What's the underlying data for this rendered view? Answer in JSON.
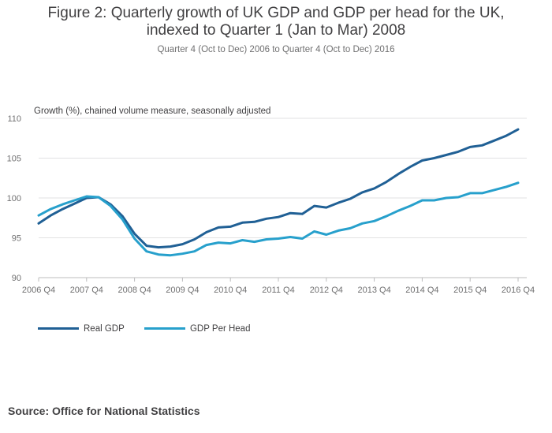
{
  "title_line1": "Figure 2: Quarterly growth of UK GDP and GDP per head for the UK,",
  "title_line2": "indexed to Quarter 1 (Jan to Mar) 2008",
  "subtitle": "Quarter 4 (Oct to Dec) 2006 to Quarter 4 (Oct to Dec) 2016",
  "source": "Source: Office for National Statistics",
  "chart_data": {
    "type": "line",
    "ylabel": "Growth (%), chained volume measure, seasonally adjusted",
    "xlabel": "",
    "ylim": [
      90,
      110
    ],
    "yticks": [
      90,
      95,
      100,
      105,
      110
    ],
    "grid": true,
    "legend_position": "bottom-left",
    "x": [
      "2006 Q4",
      "2007 Q1",
      "2007 Q2",
      "2007 Q3",
      "2007 Q4",
      "2008 Q1",
      "2008 Q2",
      "2008 Q3",
      "2008 Q4",
      "2009 Q1",
      "2009 Q2",
      "2009 Q3",
      "2009 Q4",
      "2010 Q1",
      "2010 Q2",
      "2010 Q3",
      "2010 Q4",
      "2011 Q1",
      "2011 Q2",
      "2011 Q3",
      "2011 Q4",
      "2012 Q1",
      "2012 Q2",
      "2012 Q3",
      "2012 Q4",
      "2013 Q1",
      "2013 Q2",
      "2013 Q3",
      "2013 Q4",
      "2014 Q1",
      "2014 Q2",
      "2014 Q3",
      "2014 Q4",
      "2015 Q1",
      "2015 Q2",
      "2015 Q3",
      "2015 Q4",
      "2016 Q1",
      "2016 Q2",
      "2016 Q3",
      "2016 Q4"
    ],
    "xtick_labels": [
      "2006 Q4",
      "2007 Q4",
      "2008 Q4",
      "2009 Q4",
      "2010 Q4",
      "2011 Q4",
      "2012 Q4",
      "2013 Q4",
      "2014 Q4",
      "2015 Q4",
      "2016 Q4"
    ],
    "series": [
      {
        "name": "Real GDP",
        "color": "#206095",
        "values": [
          96.8,
          97.8,
          98.6,
          99.3,
          100.0,
          100.1,
          99.2,
          97.7,
          95.5,
          94.0,
          93.8,
          93.9,
          94.2,
          94.8,
          95.7,
          96.3,
          96.4,
          96.9,
          97.0,
          97.4,
          97.6,
          98.1,
          98.0,
          99.0,
          98.8,
          99.4,
          99.9,
          100.7,
          101.2,
          102.0,
          103.0,
          103.9,
          104.7,
          105.0,
          105.4,
          105.8,
          106.4,
          106.6,
          107.2,
          107.8,
          108.6
        ]
      },
      {
        "name": "GDP Per Head",
        "color": "#27a0cc",
        "values": [
          97.8,
          98.6,
          99.2,
          99.7,
          100.2,
          100.1,
          99.0,
          97.3,
          94.9,
          93.3,
          92.9,
          92.8,
          93.0,
          93.3,
          94.1,
          94.4,
          94.3,
          94.7,
          94.5,
          94.8,
          94.9,
          95.1,
          94.9,
          95.8,
          95.4,
          95.9,
          96.2,
          96.8,
          97.1,
          97.7,
          98.4,
          99.0,
          99.7,
          99.7,
          100.0,
          100.1,
          100.6,
          100.6,
          101.0,
          101.4,
          101.9
        ]
      }
    ]
  }
}
